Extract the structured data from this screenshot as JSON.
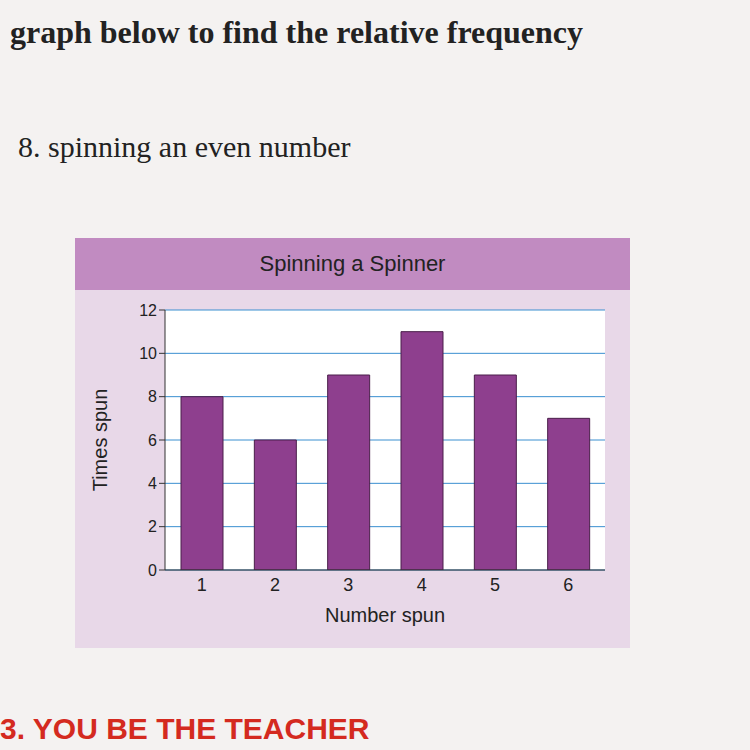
{
  "page": {
    "heading": "graph below to find the relative frequency",
    "question": "8. spinning an even number",
    "footer": "3. YOU BE THE TEACHER"
  },
  "chart_data": {
    "type": "bar",
    "title": "Spinning a Spinner",
    "x_label": "Number spun",
    "y_label": "Times spun",
    "categories": [
      "1",
      "2",
      "3",
      "4",
      "5",
      "6"
    ],
    "values": [
      8,
      6,
      9,
      11,
      9,
      7
    ],
    "color": "#8e3f8e",
    "ylim": [
      0,
      12
    ],
    "yticks": [
      0,
      2,
      4,
      6,
      8,
      10,
      12
    ],
    "grid": true
  }
}
